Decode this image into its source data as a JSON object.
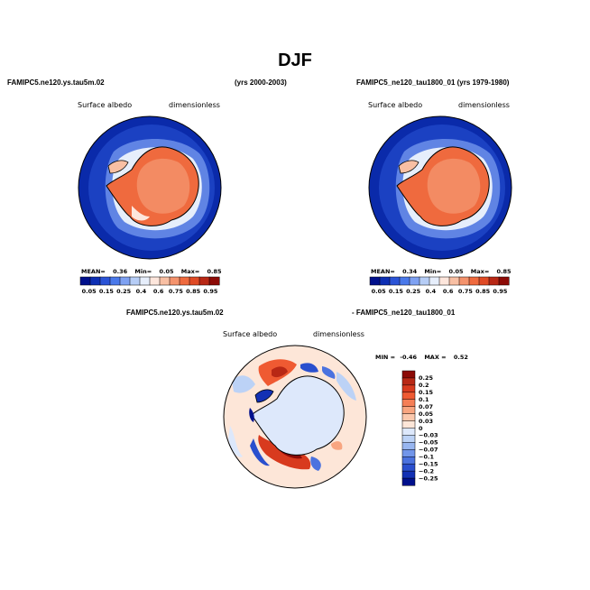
{
  "title": "DJF",
  "chart_data": [
    {
      "type": "heatmap",
      "projection": "south-polar-stereographic",
      "case_label": "FAMIPC5.ne120.ys.tau5m.02",
      "years_label": "(yrs 2000-2003)",
      "variable": "Surface albedo",
      "units": "dimensionless",
      "stats": {
        "mean_label": "MEAN=",
        "mean": "0.36",
        "min_label": "Min=",
        "min": "0.05",
        "max_label": "Max=",
        "max": "0.85"
      },
      "colorbar": {
        "orientation": "horizontal",
        "levels": [
          "0.05",
          "0.15",
          "0.25",
          "0.4",
          "0.6",
          "0.75",
          "0.85",
          "0.95"
        ],
        "colors": [
          "#00108c",
          "#0d2fb4",
          "#2a53d6",
          "#4a79ea",
          "#7ea1f2",
          "#b6cdf6",
          "#e6eefb",
          "#fde6dc",
          "#f8bfa3",
          "#f4936d",
          "#ef6a3e",
          "#df4a25",
          "#b82815",
          "#8c0a06"
        ]
      }
    },
    {
      "type": "heatmap",
      "projection": "south-polar-stereographic",
      "case_label": "FAMIPC5_ne120_tau1800_01 (yrs 1979-1980)",
      "variable": "Surface albedo",
      "units": "dimensionless",
      "stats": {
        "mean_label": "MEAN=",
        "mean": "0.34",
        "min_label": "Min=",
        "min": "0.05",
        "max_label": "Max=",
        "max": "0.85"
      },
      "colorbar": {
        "orientation": "horizontal",
        "levels": [
          "0.05",
          "0.15",
          "0.25",
          "0.4",
          "0.6",
          "0.75",
          "0.85",
          "0.95"
        ],
        "colors": [
          "#00108c",
          "#0d2fb4",
          "#2a53d6",
          "#4a79ea",
          "#7ea1f2",
          "#b6cdf6",
          "#e6eefb",
          "#fde6dc",
          "#f8bfa3",
          "#f4936d",
          "#ef6a3e",
          "#df4a25",
          "#b82815",
          "#8c0a06"
        ]
      }
    },
    {
      "type": "heatmap",
      "projection": "south-polar-stereographic",
      "case_label_left": "FAMIPC5.ne120.ys.tau5m.02",
      "case_label_right": "- FAMIPC5_ne120_tau1800_01",
      "variable": "Surface albedo",
      "units": "dimensionless",
      "stats": {
        "min_label": "MIN =",
        "min": "-0.46",
        "max_label": "MAX =",
        "max": "0.52"
      },
      "colorbar": {
        "orientation": "vertical",
        "levels": [
          "0.25",
          "0.2",
          "0.15",
          "0.1",
          "0.07",
          "0.05",
          "0.03",
          "0",
          "−0.03",
          "−0.05",
          "−0.07",
          "−0.1",
          "−0.15",
          "−0.2",
          "−0.25"
        ],
        "colors": [
          "#8c0a06",
          "#b82815",
          "#d83a1e",
          "#ef5a32",
          "#f57f57",
          "#f8a580",
          "#fbc8ad",
          "#fde6d8",
          "#dde8fb",
          "#bcd2f6",
          "#98b6f0",
          "#7296ea",
          "#4b72df",
          "#2a4fce",
          "#1230b4",
          "#00108c"
        ]
      }
    }
  ]
}
